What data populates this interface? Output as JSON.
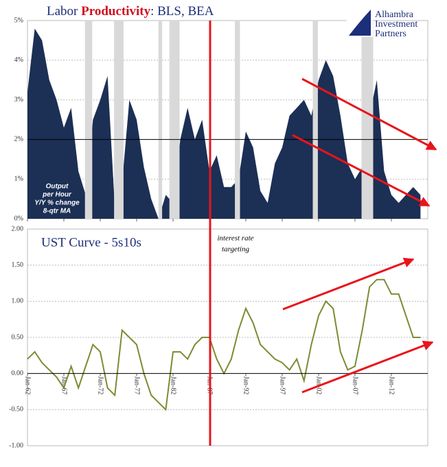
{
  "logo": [
    "Alhambra",
    "Investment",
    "Partners"
  ],
  "chart_data": [
    {
      "type": "area",
      "title": [
        "Labor ",
        "Productivity",
        ": BLS, BEA"
      ],
      "annotation": [
        "Output",
        "per Hour",
        "Y/Y % change",
        "8-qtr MA"
      ],
      "color": "#1c2f55",
      "shade_color": "#d9d9d9",
      "x": [
        1962,
        1963,
        1964,
        1965,
        1966,
        1967,
        1968,
        1969,
        1970,
        1971,
        1972,
        1973,
        1974,
        1975,
        1976,
        1977,
        1978,
        1979,
        1980,
        1981,
        1982,
        1983,
        1984,
        1985,
        1986,
        1987,
        1988,
        1989,
        1990,
        1991,
        1992,
        1993,
        1994,
        1995,
        1996,
        1997,
        1998,
        1999,
        2000,
        2001,
        2002,
        2003,
        2004,
        2005,
        2006,
        2007,
        2008,
        2009,
        2010,
        2011,
        2012,
        2013,
        2014,
        2015,
        2016
      ],
      "values": [
        3.2,
        4.8,
        4.5,
        3.5,
        3.0,
        2.3,
        2.8,
        1.2,
        0.6,
        2.5,
        3.0,
        3.6,
        0.3,
        0.9,
        3.0,
        2.5,
        1.3,
        0.5,
        0.0,
        0.6,
        0.4,
        2.0,
        2.8,
        2.0,
        2.5,
        1.2,
        1.6,
        0.8,
        0.8,
        1.0,
        2.2,
        1.8,
        0.7,
        0.4,
        1.4,
        1.8,
        2.6,
        2.8,
        3.0,
        2.6,
        3.5,
        4.0,
        3.6,
        2.6,
        1.4,
        1.0,
        1.3,
        2.6,
        3.5,
        1.2,
        0.6,
        0.4,
        0.6,
        0.8,
        0.6
      ],
      "shaded_periods": [
        [
          1969.9,
          1970.9
        ],
        [
          1973.9,
          1975.2
        ],
        [
          1980.0,
          1980.5
        ],
        [
          1981.5,
          1982.9
        ],
        [
          1990.5,
          1991.2
        ],
        [
          2001.2,
          2001.9
        ],
        [
          2007.9,
          2009.5
        ]
      ],
      "xlim": [
        1962,
        2017
      ],
      "xticks": [
        1962,
        1967,
        1972,
        1977,
        1982,
        1987,
        1992,
        1997,
        2002,
        2007,
        2012
      ],
      "ylim": [
        0,
        5
      ],
      "yticks": [
        {
          "value": 0,
          "label": "0%"
        },
        {
          "value": 1,
          "label": "1%"
        },
        {
          "value": 2,
          "label": "2%"
        },
        {
          "value": 3,
          "label": "3%"
        },
        {
          "value": 4,
          "label": "4%"
        },
        {
          "value": 5,
          "label": "5%"
        }
      ],
      "reference_line": 2,
      "grid": true
    },
    {
      "type": "line",
      "title": [
        "UST Curve - 5s10s"
      ],
      "annotation": [
        "interest rate",
        "targeting"
      ],
      "color": "#7a8c32",
      "x": [
        1962,
        1963,
        1964,
        1965,
        1966,
        1967,
        1968,
        1969,
        1970,
        1971,
        1972,
        1973,
        1974,
        1975,
        1976,
        1977,
        1978,
        1979,
        1980,
        1981,
        1982,
        1983,
        1984,
        1985,
        1986,
        1987,
        1988,
        1989,
        1990,
        1991,
        1992,
        1993,
        1994,
        1995,
        1996,
        1997,
        1998,
        1999,
        2000,
        2001,
        2002,
        2003,
        2004,
        2005,
        2006,
        2007,
        2008,
        2009,
        2010,
        2011,
        2012,
        2013,
        2014,
        2015,
        2016
      ],
      "values": [
        0.2,
        0.3,
        0.15,
        0.05,
        -0.05,
        -0.2,
        0.1,
        -0.2,
        0.1,
        0.4,
        0.3,
        -0.2,
        -0.3,
        0.6,
        0.5,
        0.4,
        0.0,
        -0.3,
        -0.4,
        -0.5,
        0.3,
        0.3,
        0.2,
        0.4,
        0.5,
        0.5,
        0.2,
        0.0,
        0.2,
        0.6,
        0.9,
        0.7,
        0.4,
        0.3,
        0.2,
        0.15,
        0.05,
        0.2,
        -0.1,
        0.4,
        0.8,
        1.0,
        0.9,
        0.3,
        0.05,
        0.1,
        0.6,
        1.2,
        1.3,
        1.3,
        1.1,
        1.1,
        0.8,
        0.5,
        0.5
      ],
      "xlim": [
        1962,
        2017
      ],
      "xticks": [
        {
          "value": 1962,
          "label": "Jan-62"
        },
        {
          "value": 1967,
          "label": "Jan-67"
        },
        {
          "value": 1972,
          "label": "Jan-72"
        },
        {
          "value": 1977,
          "label": "Jan-77"
        },
        {
          "value": 1982,
          "label": "Jan-82"
        },
        {
          "value": 1987,
          "label": "Jan-87"
        },
        {
          "value": 1992,
          "label": "Jan-92"
        },
        {
          "value": 1997,
          "label": "Jan-97"
        },
        {
          "value": 2002,
          "label": "Jan-02"
        },
        {
          "value": 2007,
          "label": "Jan-07"
        },
        {
          "value": 2012,
          "label": "Jan-12"
        }
      ],
      "ylim": [
        -1,
        2
      ],
      "yticks": [
        {
          "value": -1,
          "label": "-1.00"
        },
        {
          "value": -0.5,
          "label": "-0.50"
        },
        {
          "value": 0,
          "label": "0.00"
        },
        {
          "value": 0.5,
          "label": "0.50"
        },
        {
          "value": 1,
          "label": "1.00"
        },
        {
          "value": 1.5,
          "label": "1.50"
        },
        {
          "value": 2,
          "label": "2.00"
        }
      ],
      "reference_line": 0,
      "grid": true
    }
  ]
}
